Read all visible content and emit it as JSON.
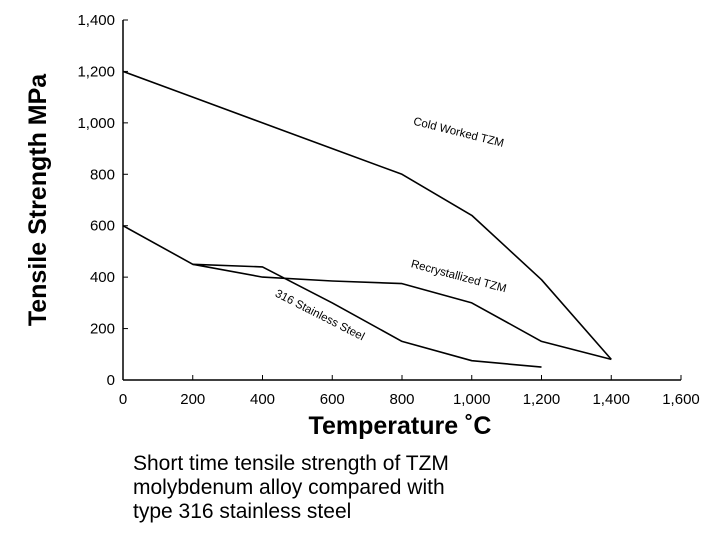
{
  "chart_data": {
    "type": "line",
    "xlabel": "Temperature ˚C",
    "ylabel": "Tensile Strength MPa",
    "xlim": [
      0,
      1600
    ],
    "ylim": [
      0,
      1400
    ],
    "x_ticks": [
      "0",
      "200",
      "400",
      "600",
      "800",
      "1,000",
      "1,200",
      "1,400",
      "1,600"
    ],
    "y_ticks": [
      "0",
      "200",
      "400",
      "600",
      "800",
      "1,000",
      "1,200",
      "1,400"
    ],
    "grid": false,
    "legend": "none",
    "series": [
      {
        "name": "Cold Worked TZM",
        "x": [
          0,
          200,
          400,
          600,
          800,
          1000,
          1200,
          1400
        ],
        "y": [
          1200,
          1100,
          1000,
          900,
          800,
          640,
          390,
          80
        ]
      },
      {
        "name": "Recrystallized TZM",
        "x": [
          200,
          400,
          600,
          800,
          1000,
          1200,
          1400
        ],
        "y": [
          450,
          400,
          385,
          375,
          300,
          150,
          80
        ]
      },
      {
        "name": "316 Stainless Steel",
        "x": [
          0,
          200,
          400,
          600,
          800,
          1000,
          1200
        ],
        "y": [
          600,
          450,
          440,
          300,
          150,
          75,
          50
        ]
      }
    ]
  },
  "caption": {
    "line1": "Short time tensile strength of TZM",
    "line2": "molybdenum alloy compared with",
    "line3": "type 316 stainless steel"
  },
  "colors": {
    "line": "#000000",
    "background": "#ffffff"
  }
}
